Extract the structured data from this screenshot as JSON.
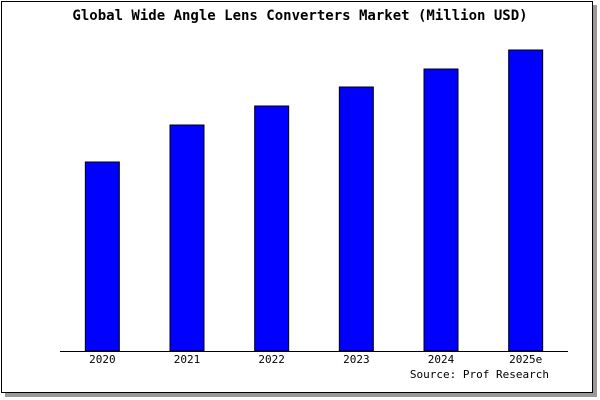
{
  "chart_data": {
    "type": "bar",
    "title": "Global Wide Angle Lens Converters Market (Million USD)",
    "categories": [
      "2020",
      "2021",
      "2022",
      "2023",
      "2024",
      "2025e"
    ],
    "values": [
      189,
      226,
      245,
      264,
      282,
      301
    ],
    "color": "#0000ff",
    "ylim": [
      0,
      303
    ],
    "source": "Source: Prof Research"
  }
}
